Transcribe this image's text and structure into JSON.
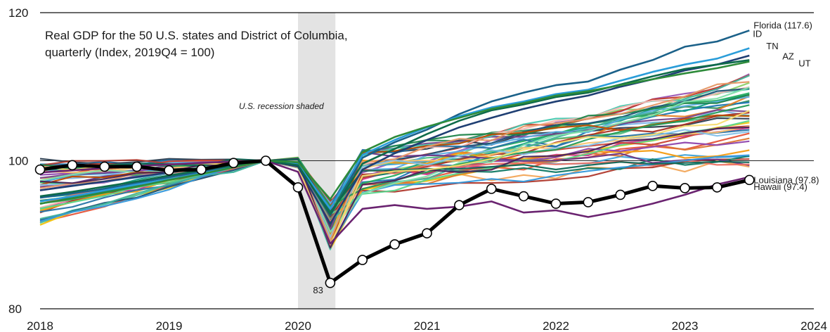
{
  "chart_data": {
    "type": "line",
    "title_lines": [
      "Real GDP for the 50 U.S. states and District of Columbia,",
      "quarterly (Index, 2019Q4 = 100)"
    ],
    "recession_note": "U.S. recession shaded",
    "recession_shading": {
      "x_start": 2020.0,
      "x_end": 2020.29,
      "color": "#e3e3e3"
    },
    "x_ticks": [
      "2018",
      "2019",
      "2020",
      "2021",
      "2022",
      "2023",
      "2024"
    ],
    "y_ticks": [
      "80",
      "100",
      "120"
    ],
    "xlim": [
      2018,
      2024
    ],
    "ylim": [
      80,
      120
    ],
    "reference_line_y": 100,
    "grid": "horizontal at y ticks",
    "x_quarters": [
      2018.0,
      2018.25,
      2018.5,
      2018.75,
      2019.0,
      2019.25,
      2019.5,
      2019.75,
      2020.0,
      2020.25,
      2020.5,
      2020.75,
      2021.0,
      2021.25,
      2021.5,
      2021.75,
      2022.0,
      2022.25,
      2022.5,
      2022.75,
      2023.0,
      2023.25,
      2023.5
    ],
    "highlight_series": {
      "name": "Hawaii (97.4)",
      "color": "#000000",
      "values": [
        98.8,
        99.4,
        99.2,
        99.2,
        98.7,
        98.8,
        99.7,
        100.0,
        96.4,
        83.5,
        86.6,
        88.7,
        90.2,
        94.0,
        96.2,
        95.2,
        94.2,
        94.4,
        95.4,
        96.6,
        96.3,
        96.4,
        97.4
      ],
      "point_label": "83"
    },
    "labeled_series": [
      {
        "name": "Florida (117.6)",
        "color": "#1b6189",
        "values": [
          95.0,
          95.6,
          96.2,
          97.0,
          97.8,
          98.5,
          99.3,
          100.0,
          99.6,
          92.6,
          100.4,
          102.5,
          104.2,
          106.3,
          108.0,
          109.2,
          110.2,
          110.7,
          112.3,
          113.6,
          115.4,
          116.1,
          117.6
        ]
      },
      {
        "name": "ID",
        "color": "#2a9dd9",
        "values": [
          94.5,
          95.2,
          96.0,
          96.8,
          97.5,
          98.3,
          99.1,
          100.0,
          99.5,
          93.5,
          100.8,
          102.8,
          104.5,
          106.0,
          107.2,
          108.0,
          109.0,
          109.6,
          110.8,
          112.0,
          113.0,
          113.8,
          115.2
        ]
      },
      {
        "name": "TN",
        "color": "#1f3f73",
        "values": [
          96.0,
          96.6,
          97.2,
          97.8,
          98.4,
          99.0,
          99.5,
          100.0,
          99.2,
          91.5,
          98.8,
          101.0,
          102.8,
          104.5,
          105.8,
          107.0,
          108.0,
          108.8,
          110.0,
          111.0,
          112.2,
          113.0,
          114.2
        ]
      },
      {
        "name": "AZ",
        "color": "#0e6b4a",
        "values": [
          95.2,
          95.8,
          96.5,
          97.2,
          98.0,
          98.7,
          99.4,
          100.0,
          99.4,
          92.8,
          99.6,
          101.6,
          103.6,
          105.4,
          106.8,
          107.6,
          108.6,
          109.2,
          110.3,
          111.4,
          112.4,
          113.0,
          113.6
        ]
      },
      {
        "name": "UT",
        "color": "#2e8b3a",
        "values": [
          94.2,
          94.9,
          95.7,
          96.5,
          97.4,
          98.2,
          99.1,
          100.0,
          99.8,
          94.8,
          101.2,
          103.2,
          104.6,
          105.8,
          107.0,
          107.8,
          108.8,
          109.4,
          110.2,
          111.0,
          111.8,
          112.5,
          113.4
        ]
      },
      {
        "name": "Louisiana (97.8)",
        "color": "#6a2370",
        "values": [
          98.4,
          98.7,
          99.0,
          99.3,
          99.5,
          99.7,
          99.9,
          100.0,
          98.5,
          88.8,
          93.5,
          94.0,
          93.5,
          93.8,
          94.5,
          93.0,
          93.3,
          92.4,
          93.2,
          94.2,
          95.4,
          96.8,
          97.8
        ]
      }
    ]
  }
}
